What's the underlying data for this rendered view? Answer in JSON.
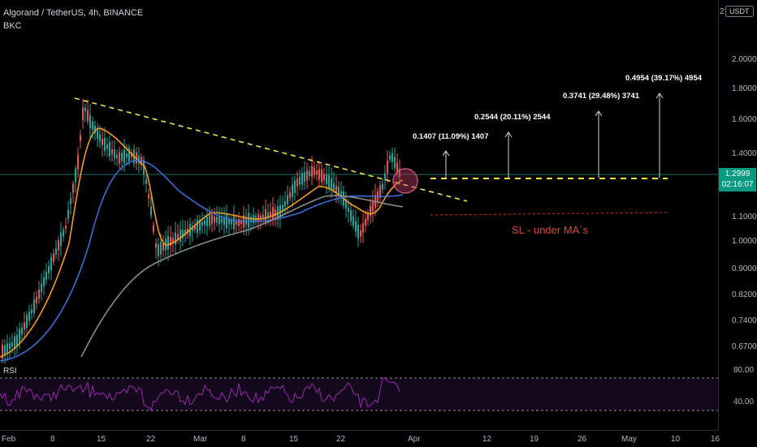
{
  "header": {
    "symbol_line": "Algorand / TetherUS, 4h, BINANCE",
    "indicator": "BKC"
  },
  "currency_button": "USDT",
  "axis_top_label": "2",
  "price_axis": {
    "ticks": [
      "2.0000",
      "1.8000",
      "1.6000",
      "1.4000",
      "1.1000",
      "1.0000",
      "0.9000",
      "0.8200",
      "0.7400",
      "0.6700"
    ],
    "rsi_ticks": [
      "80.00",
      "40.00"
    ]
  },
  "current_price": {
    "value": "1.2999",
    "countdown": "02:16:07",
    "color": "#089981"
  },
  "time_axis": {
    "ticks": [
      "Feb",
      "8",
      "15",
      "22",
      "Mar",
      "8",
      "15",
      "22",
      "Apr",
      "12",
      "19",
      "26",
      "May",
      "10",
      "16"
    ]
  },
  "rsi": {
    "label": "RSI"
  },
  "annotations": {
    "targets": [
      "0.1407 (11.09%) 1407",
      "0.2544 (20.11%) 2544",
      "0.3741 (29.48%) 3741",
      "0.4954 (39.17%) 4954"
    ],
    "stop_loss": "SL - under MA´s"
  },
  "colors": {
    "trendline": "#f5e642",
    "ema_fast": "#f59c1a",
    "ema_mid": "#3a6fd8",
    "ema_slow": "#8a8a8a",
    "rsi": "#9c27b0",
    "stop_loss": "#c0392b"
  }
}
